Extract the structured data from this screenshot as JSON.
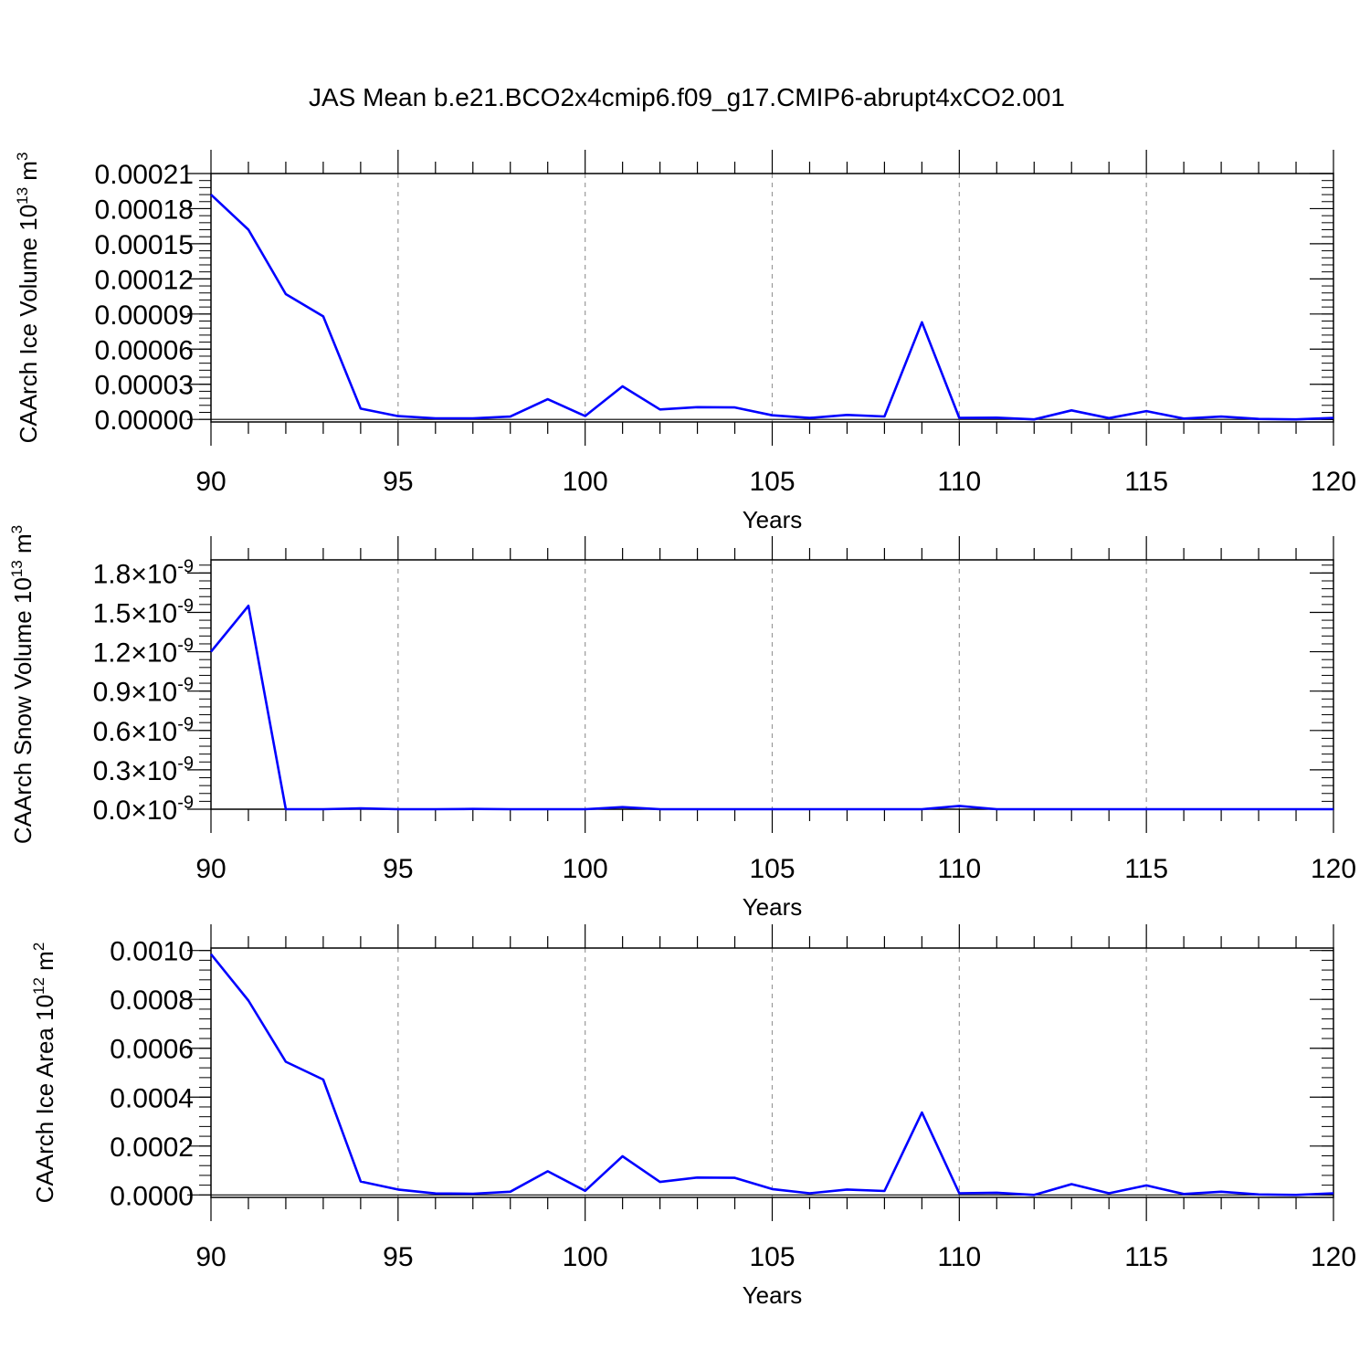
{
  "title": "JAS Mean b.e21.BCO2x4cmip6.f09_g17.CMIP6-abrupt4xCO2.001",
  "line_color": "#0000ff",
  "chart_data": [
    {
      "type": "line",
      "xlabel": "Years",
      "ylabel": "CAArch Ice Volume 10",
      "ylabel_exp": "13",
      "ylabel_unit": " m",
      "ylabel_unit_exp": "3",
      "xlim": [
        90,
        120
      ],
      "ylim": [
        -2.2e-06,
        0.00021
      ],
      "xticks": [
        90,
        95,
        100,
        105,
        110,
        115,
        120
      ],
      "xtick_labels": [
        "90",
        "95",
        "100",
        "105",
        "110",
        "115",
        "120"
      ],
      "yticks": [
        0,
        3e-05,
        6e-05,
        9e-05,
        0.00012,
        0.00015,
        0.00018,
        0.00021
      ],
      "ytick_labels": [
        "0.00000",
        "0.00003",
        "0.00006",
        "0.00009",
        "0.00012",
        "0.00015",
        "0.00018",
        "0.00021"
      ],
      "grid": "vertical-dashed",
      "x": [
        90,
        91,
        92,
        93,
        94,
        95,
        96,
        97,
        98,
        99,
        100,
        101,
        102,
        103,
        104,
        105,
        106,
        107,
        108,
        109,
        110,
        111,
        112,
        113,
        114,
        115,
        116,
        117,
        118,
        119,
        120
      ],
      "y": [
        0.000192,
        0.000162,
        0.000107,
        8.8e-05,
        9.2e-06,
        2.8e-06,
        9e-07,
        9e-07,
        2.4e-06,
        1.72e-05,
        2.9e-06,
        2.82e-05,
        8.5e-06,
        1.04e-05,
        1.02e-05,
        3.5e-06,
        1.2e-06,
        3.8e-06,
        2.5e-06,
        8.3e-05,
        1.3e-06,
        1.5e-06,
        0.0,
        7.7e-06,
        1.1e-06,
        7.1e-06,
        7e-07,
        2.4e-06,
        4e-07,
        0.0,
        1.2e-06
      ]
    },
    {
      "type": "line",
      "xlabel": "Years",
      "ylabel": "CAArch Snow Volume 10",
      "ylabel_exp": "13",
      "ylabel_unit": " m",
      "ylabel_unit_exp": "3",
      "xlim": [
        90,
        120
      ],
      "ylim": [
        0,
        1.9e-09
      ],
      "xticks": [
        90,
        95,
        100,
        105,
        110,
        115,
        120
      ],
      "xtick_labels": [
        "90",
        "95",
        "100",
        "105",
        "110",
        "115",
        "120"
      ],
      "yticks": [
        0,
        3e-10,
        6e-10,
        9e-10,
        1.2e-09,
        1.5e-09,
        1.8e-09
      ],
      "ytick_labels": [
        "0.0",
        "0.3",
        "0.6",
        "0.9",
        "1.2",
        "1.5",
        "1.8"
      ],
      "ytick_multiplier": "×10",
      "ytick_exponent": "-9",
      "grid": "vertical-dashed",
      "x": [
        90,
        91,
        92,
        93,
        94,
        95,
        96,
        97,
        98,
        99,
        100,
        101,
        102,
        103,
        104,
        105,
        106,
        107,
        108,
        109,
        110,
        111,
        112,
        113,
        114,
        115,
        116,
        117,
        118,
        119,
        120
      ],
      "y": [
        1.2e-09,
        1.55e-09,
        1e-12,
        0,
        6e-12,
        0,
        0,
        2e-12,
        0,
        0,
        0,
        1.6e-11,
        0,
        0,
        0,
        0,
        0,
        0,
        0,
        0,
        2.5e-11,
        0,
        0,
        0,
        0,
        0,
        0,
        0,
        0,
        0,
        0
      ]
    },
    {
      "type": "line",
      "xlabel": "Years",
      "ylabel": "CAArch Ice Area 10",
      "ylabel_exp": "12",
      "ylabel_unit": " m",
      "ylabel_unit_exp": "2",
      "xlim": [
        90,
        120
      ],
      "ylim": [
        -1e-05,
        0.00101
      ],
      "xticks": [
        90,
        95,
        100,
        105,
        110,
        115,
        120
      ],
      "xtick_labels": [
        "90",
        "95",
        "100",
        "105",
        "110",
        "115",
        "120"
      ],
      "yticks": [
        0,
        0.0002,
        0.0004,
        0.0006,
        0.0008,
        0.001
      ],
      "ytick_labels": [
        "0.0000",
        "0.0002",
        "0.0004",
        "0.0006",
        "0.0008",
        "0.0010"
      ],
      "grid": "vertical-dashed",
      "x": [
        90,
        91,
        92,
        93,
        94,
        95,
        96,
        97,
        98,
        99,
        100,
        101,
        102,
        103,
        104,
        105,
        106,
        107,
        108,
        109,
        110,
        111,
        112,
        113,
        114,
        115,
        116,
        117,
        118,
        119,
        120
      ],
      "y": [
        0.000985,
        0.000795,
        0.000545,
        0.000472,
        5.5e-05,
        2.2e-05,
        6e-06,
        5e-06,
        1.3e-05,
        9.7e-05,
        1.7e-05,
        0.000158,
        5.3e-05,
        7.1e-05,
        7e-05,
        2.4e-05,
        7e-06,
        2.2e-05,
        1.6e-05,
        0.000337,
        7e-06,
        9e-06,
        0.0,
        4.4e-05,
        7e-06,
        3.9e-05,
        4e-06,
        1.3e-05,
        2e-06,
        0.0,
        7e-06
      ]
    }
  ]
}
